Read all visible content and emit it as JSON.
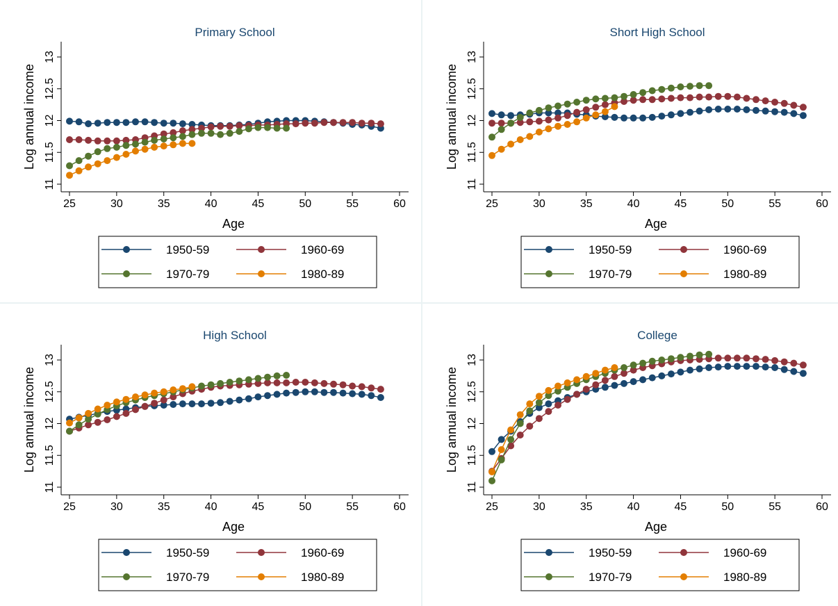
{
  "colors": {
    "series": [
      "#1a476f",
      "#90353b",
      "#55752f",
      "#e37e00"
    ],
    "title": "#1a476f",
    "axis": "#000000",
    "panel_border": "#eaf2f3",
    "background": "#ffffff"
  },
  "chart_data": [
    {
      "type": "line",
      "title": "Primary School",
      "xlabel": "Age",
      "ylabel": "Log annual income",
      "xlim": [
        25,
        60
      ],
      "ylim": [
        11,
        13
      ],
      "xticks": [
        "25",
        "30",
        "35",
        "40",
        "45",
        "50",
        "55",
        "60"
      ],
      "yticks": [
        "11",
        "11.5",
        "12",
        "12.5",
        "13"
      ],
      "legend": [
        "1950-59",
        "1960-69",
        "1970-79",
        "1980-89"
      ],
      "legend_position": "bottom",
      "grid": false,
      "series": [
        {
          "name": "1950-59",
          "x": [
            25,
            26,
            27,
            28,
            29,
            30,
            31,
            32,
            33,
            34,
            35,
            36,
            37,
            38,
            39,
            40,
            41,
            42,
            43,
            44,
            45,
            46,
            47,
            48,
            49,
            50,
            51,
            52,
            53,
            54,
            55,
            56,
            57,
            58
          ],
          "values": [
            11.99,
            11.98,
            11.95,
            11.96,
            11.97,
            11.97,
            11.97,
            11.98,
            11.98,
            11.97,
            11.96,
            11.96,
            11.95,
            11.94,
            11.93,
            11.92,
            11.92,
            11.92,
            11.93,
            11.94,
            11.96,
            11.98,
            11.99,
            12.0,
            12.0,
            12.0,
            11.99,
            11.98,
            11.97,
            11.96,
            11.94,
            11.93,
            11.91,
            11.88
          ]
        },
        {
          "name": "1960-69",
          "x": [
            25,
            26,
            27,
            28,
            29,
            30,
            31,
            32,
            33,
            34,
            35,
            36,
            37,
            38,
            39,
            40,
            41,
            42,
            43,
            44,
            45,
            46,
            47,
            48,
            49,
            50,
            51,
            52,
            53,
            54,
            55,
            56,
            57,
            58
          ],
          "values": [
            11.7,
            11.7,
            11.69,
            11.68,
            11.68,
            11.68,
            11.69,
            11.7,
            11.73,
            11.76,
            11.79,
            11.81,
            11.84,
            11.86,
            11.88,
            11.9,
            11.91,
            11.91,
            11.92,
            11.92,
            11.93,
            11.93,
            11.94,
            11.95,
            11.95,
            11.96,
            11.96,
            11.97,
            11.97,
            11.97,
            11.97,
            11.96,
            11.96,
            11.95
          ]
        },
        {
          "name": "1970-79",
          "x": [
            25,
            26,
            27,
            28,
            29,
            30,
            31,
            32,
            33,
            34,
            35,
            36,
            37,
            38,
            39,
            40,
            41,
            42,
            43,
            44,
            45,
            46,
            47,
            48
          ],
          "values": [
            11.29,
            11.37,
            11.44,
            11.51,
            11.56,
            11.58,
            11.61,
            11.63,
            11.66,
            11.69,
            11.71,
            11.73,
            11.75,
            11.78,
            11.8,
            11.8,
            11.78,
            11.8,
            11.83,
            11.87,
            11.89,
            11.89,
            11.88,
            11.88
          ]
        },
        {
          "name": "1980-89",
          "x": [
            25,
            26,
            27,
            28,
            29,
            30,
            31,
            32,
            33,
            34,
            35,
            36,
            37,
            38
          ],
          "values": [
            11.14,
            11.21,
            11.27,
            11.32,
            11.37,
            11.42,
            11.47,
            11.52,
            11.55,
            11.58,
            11.6,
            11.62,
            11.64,
            11.64
          ]
        }
      ]
    },
    {
      "type": "line",
      "title": "Short High School",
      "xlabel": "Age",
      "ylabel": "Log annual income",
      "xlim": [
        25,
        60
      ],
      "ylim": [
        11,
        13
      ],
      "xticks": [
        "25",
        "30",
        "35",
        "40",
        "45",
        "50",
        "55",
        "60"
      ],
      "yticks": [
        "11",
        "11.5",
        "12",
        "12.5",
        "13"
      ],
      "legend": [
        "1950-59",
        "1960-69",
        "1970-79",
        "1980-89"
      ],
      "legend_position": "bottom",
      "grid": false,
      "series": [
        {
          "name": "1950-59",
          "x": [
            25,
            26,
            27,
            28,
            29,
            30,
            31,
            32,
            33,
            34,
            35,
            36,
            37,
            38,
            39,
            40,
            41,
            42,
            43,
            44,
            45,
            46,
            47,
            48,
            49,
            50,
            51,
            52,
            53,
            54,
            55,
            56,
            57,
            58
          ],
          "values": [
            12.11,
            12.09,
            12.08,
            12.09,
            12.1,
            12.12,
            12.12,
            12.12,
            12.12,
            12.1,
            12.09,
            12.07,
            12.06,
            12.05,
            12.04,
            12.04,
            12.04,
            12.05,
            12.07,
            12.09,
            12.11,
            12.13,
            12.15,
            12.17,
            12.18,
            12.18,
            12.18,
            12.17,
            12.16,
            12.15,
            12.14,
            12.13,
            12.11,
            12.08
          ]
        },
        {
          "name": "1960-69",
          "x": [
            25,
            26,
            27,
            28,
            29,
            30,
            31,
            32,
            33,
            34,
            35,
            36,
            37,
            38,
            39,
            40,
            41,
            42,
            43,
            44,
            45,
            46,
            47,
            48,
            49,
            50,
            51,
            52,
            53,
            54,
            55,
            56,
            57,
            58
          ],
          "values": [
            11.96,
            11.96,
            11.96,
            11.97,
            11.98,
            11.99,
            12.01,
            12.04,
            12.08,
            12.13,
            12.17,
            12.21,
            12.25,
            12.28,
            12.3,
            12.32,
            12.33,
            12.33,
            12.34,
            12.35,
            12.36,
            12.36,
            12.37,
            12.37,
            12.38,
            12.38,
            12.37,
            12.35,
            12.33,
            12.31,
            12.29,
            12.27,
            12.24,
            12.21
          ]
        },
        {
          "name": "1970-79",
          "x": [
            25,
            26,
            27,
            28,
            29,
            30,
            31,
            32,
            33,
            34,
            35,
            36,
            37,
            38,
            39,
            40,
            41,
            42,
            43,
            44,
            45,
            46,
            47,
            48
          ],
          "values": [
            11.74,
            11.86,
            11.96,
            12.05,
            12.12,
            12.16,
            12.2,
            12.23,
            12.26,
            12.29,
            12.32,
            12.34,
            12.35,
            12.36,
            12.38,
            12.41,
            12.44,
            12.47,
            12.49,
            12.51,
            12.53,
            12.54,
            12.55,
            12.55
          ]
        },
        {
          "name": "1980-89",
          "x": [
            25,
            26,
            27,
            28,
            29,
            30,
            31,
            32,
            33,
            34,
            35,
            36,
            37,
            38
          ],
          "values": [
            11.45,
            11.55,
            11.63,
            11.7,
            11.75,
            11.82,
            11.87,
            11.91,
            11.94,
            11.98,
            12.04,
            12.09,
            12.14,
            12.22
          ]
        }
      ]
    },
    {
      "type": "line",
      "title": "High School",
      "xlabel": "Age",
      "ylabel": "Log annual income",
      "xlim": [
        25,
        60
      ],
      "ylim": [
        11,
        13
      ],
      "xticks": [
        "25",
        "30",
        "35",
        "40",
        "45",
        "50",
        "55",
        "60"
      ],
      "yticks": [
        "11",
        "11.5",
        "12",
        "12.5",
        "13"
      ],
      "legend": [
        "1950-59",
        "1960-69",
        "1970-79",
        "1980-89"
      ],
      "legend_position": "bottom",
      "grid": false,
      "series": [
        {
          "name": "1950-59",
          "x": [
            25,
            26,
            27,
            28,
            29,
            30,
            31,
            32,
            33,
            34,
            35,
            36,
            37,
            38,
            39,
            40,
            41,
            42,
            43,
            44,
            45,
            46,
            47,
            48,
            49,
            50,
            51,
            52,
            53,
            54,
            55,
            56,
            57,
            58
          ],
          "values": [
            12.07,
            12.1,
            12.13,
            12.16,
            12.19,
            12.21,
            12.23,
            12.25,
            12.27,
            12.28,
            12.29,
            12.3,
            12.31,
            12.31,
            12.31,
            12.32,
            12.33,
            12.35,
            12.37,
            12.39,
            12.42,
            12.44,
            12.46,
            12.48,
            12.49,
            12.5,
            12.5,
            12.49,
            12.49,
            12.48,
            12.47,
            12.46,
            12.44,
            12.41
          ]
        },
        {
          "name": "1960-69",
          "x": [
            25,
            26,
            27,
            28,
            29,
            30,
            31,
            32,
            33,
            34,
            35,
            36,
            37,
            38,
            39,
            40,
            41,
            42,
            43,
            44,
            45,
            46,
            47,
            48,
            49,
            50,
            51,
            52,
            53,
            54,
            55,
            56,
            57,
            58
          ],
          "values": [
            11.88,
            11.93,
            11.98,
            12.02,
            12.06,
            12.11,
            12.16,
            12.22,
            12.27,
            12.32,
            12.37,
            12.42,
            12.47,
            12.51,
            12.54,
            12.57,
            12.59,
            12.6,
            12.61,
            12.62,
            12.63,
            12.64,
            12.64,
            12.64,
            12.65,
            12.65,
            12.64,
            12.63,
            12.62,
            12.61,
            12.59,
            12.58,
            12.56,
            12.54
          ]
        },
        {
          "name": "1970-79",
          "x": [
            25,
            26,
            27,
            28,
            29,
            30,
            31,
            32,
            33,
            34,
            35,
            36,
            37,
            38,
            39,
            40,
            41,
            42,
            43,
            44,
            45,
            46,
            47,
            48
          ],
          "values": [
            11.88,
            11.98,
            12.07,
            12.15,
            12.22,
            12.28,
            12.33,
            12.37,
            12.41,
            12.44,
            12.47,
            12.5,
            12.53,
            12.56,
            12.59,
            12.61,
            12.63,
            12.65,
            12.67,
            12.69,
            12.71,
            12.73,
            12.75,
            12.76
          ]
        },
        {
          "name": "1980-89",
          "x": [
            25,
            26,
            27,
            28,
            29,
            30,
            31,
            32,
            33,
            34,
            35,
            36,
            37,
            38
          ],
          "values": [
            12.01,
            12.09,
            12.16,
            12.23,
            12.29,
            12.34,
            12.38,
            12.42,
            12.45,
            12.48,
            12.5,
            12.53,
            12.55,
            12.58
          ]
        }
      ]
    },
    {
      "type": "line",
      "title": "College",
      "xlabel": "Age",
      "ylabel": "Log annual income",
      "xlim": [
        25,
        60
      ],
      "ylim": [
        11,
        13
      ],
      "xticks": [
        "25",
        "30",
        "35",
        "40",
        "45",
        "50",
        "55",
        "60"
      ],
      "yticks": [
        "11",
        "11.5",
        "12",
        "12.5",
        "13"
      ],
      "legend": [
        "1950-59",
        "1960-69",
        "1970-79",
        "1980-89"
      ],
      "legend_position": "bottom",
      "grid": false,
      "series": [
        {
          "name": "1950-59",
          "x": [
            25,
            26,
            27,
            28,
            29,
            30,
            31,
            32,
            33,
            34,
            35,
            36,
            37,
            38,
            39,
            40,
            41,
            42,
            43,
            44,
            45,
            46,
            47,
            48,
            49,
            50,
            51,
            52,
            53,
            54,
            55,
            56,
            57,
            58
          ],
          "values": [
            11.56,
            11.75,
            11.88,
            12.03,
            12.16,
            12.25,
            12.31,
            12.36,
            12.41,
            12.46,
            12.5,
            12.54,
            12.57,
            12.6,
            12.63,
            12.66,
            12.69,
            12.72,
            12.75,
            12.78,
            12.81,
            12.84,
            12.86,
            12.88,
            12.89,
            12.9,
            12.9,
            12.9,
            12.9,
            12.89,
            12.88,
            12.85,
            12.82,
            12.79
          ]
        },
        {
          "name": "1960-69",
          "x": [
            25,
            26,
            27,
            28,
            29,
            30,
            31,
            32,
            33,
            34,
            35,
            36,
            37,
            38,
            39,
            40,
            41,
            42,
            43,
            44,
            45,
            46,
            47,
            48,
            49,
            50,
            51,
            52,
            53,
            54,
            55,
            56,
            57,
            58
          ],
          "values": [
            11.25,
            11.45,
            11.65,
            11.82,
            11.96,
            12.08,
            12.19,
            12.29,
            12.38,
            12.46,
            12.54,
            12.61,
            12.68,
            12.74,
            12.79,
            12.84,
            12.88,
            12.91,
            12.94,
            12.97,
            12.99,
            13.0,
            13.01,
            13.02,
            13.03,
            13.03,
            13.03,
            13.03,
            13.02,
            13.01,
            12.99,
            12.97,
            12.95,
            12.92
          ]
        },
        {
          "name": "1970-79",
          "x": [
            25,
            26,
            27,
            28,
            29,
            30,
            31,
            32,
            33,
            34,
            35,
            36,
            37,
            38,
            39,
            40,
            41,
            42,
            43,
            44,
            45,
            46,
            47,
            48
          ],
          "values": [
            11.1,
            11.43,
            11.75,
            12.0,
            12.2,
            12.33,
            12.44,
            12.51,
            12.57,
            12.63,
            12.69,
            12.74,
            12.79,
            12.84,
            12.88,
            12.92,
            12.95,
            12.98,
            13.0,
            13.02,
            13.04,
            13.06,
            13.08,
            13.09
          ]
        },
        {
          "name": "1980-89",
          "x": [
            25,
            26,
            27,
            28,
            29,
            30,
            31,
            32,
            33,
            34,
            35,
            36,
            37,
            38
          ],
          "values": [
            11.24,
            11.59,
            11.9,
            12.14,
            12.31,
            12.43,
            12.52,
            12.59,
            12.64,
            12.69,
            12.74,
            12.79,
            12.84,
            12.88
          ]
        }
      ]
    }
  ]
}
